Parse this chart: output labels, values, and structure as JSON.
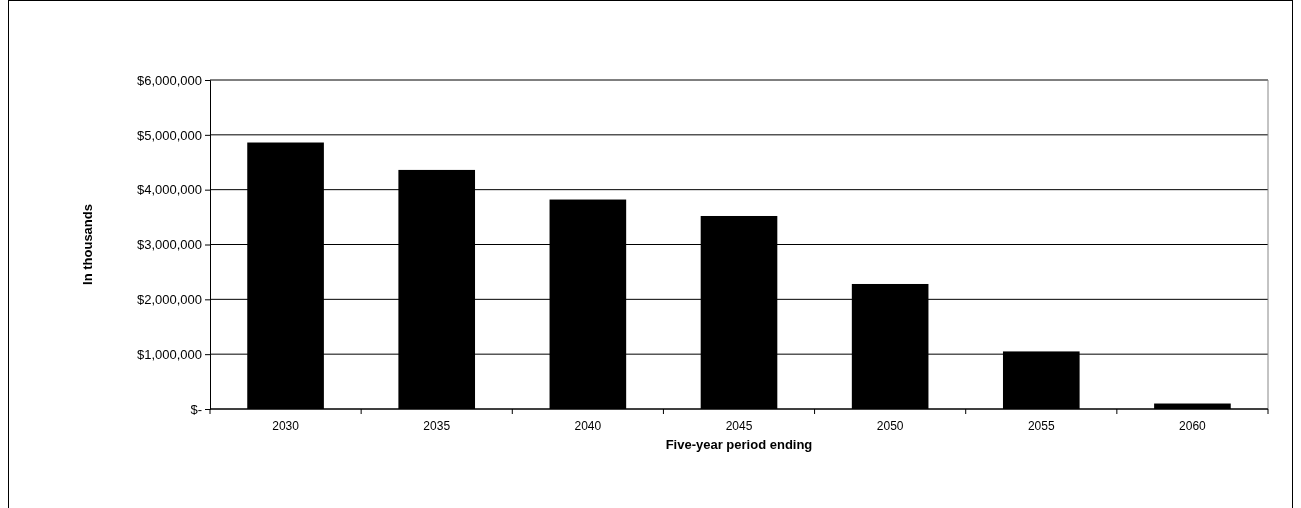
{
  "chart_data": {
    "type": "bar",
    "xlabel": "Five-year period ending",
    "ylabel": "In thousands",
    "categories": [
      "2030",
      "2035",
      "2040",
      "2045",
      "2050",
      "2055",
      "2060"
    ],
    "values": [
      4860000,
      4360000,
      3820000,
      3520000,
      2280000,
      1050000,
      100000
    ],
    "color": "#000000",
    "ylim": [
      0,
      6000000
    ],
    "yticks": [
      {
        "value": 0,
        "label": "$-"
      },
      {
        "value": 1000000,
        "label": "$1,000,000"
      },
      {
        "value": 2000000,
        "label": "$2,000,000"
      },
      {
        "value": 3000000,
        "label": "$3,000,000"
      },
      {
        "value": 4000000,
        "label": "$4,000,000"
      },
      {
        "value": 5000000,
        "label": "$5,000,000"
      },
      {
        "value": 6000000,
        "label": "$6,000,000"
      }
    ],
    "grid": "y"
  }
}
